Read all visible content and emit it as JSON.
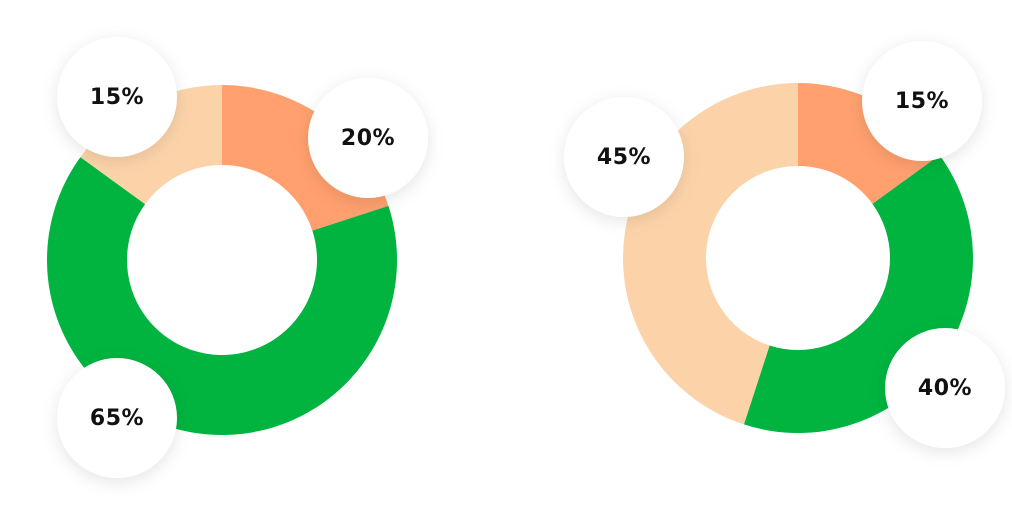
{
  "chart_data": [
    {
      "type": "pie",
      "donut": true,
      "values": [
        20,
        65,
        15
      ],
      "value_labels": [
        "20%",
        "65%",
        "15%"
      ],
      "colors": [
        "#ffa06e",
        "#00b43f",
        "#fcd3a9"
      ]
    },
    {
      "type": "pie",
      "donut": true,
      "values": [
        15,
        40,
        45
      ],
      "value_labels": [
        "15%",
        "40%",
        "45%"
      ],
      "colors": [
        "#ffa06e",
        "#00b43f",
        "#fcd3a9"
      ]
    }
  ]
}
